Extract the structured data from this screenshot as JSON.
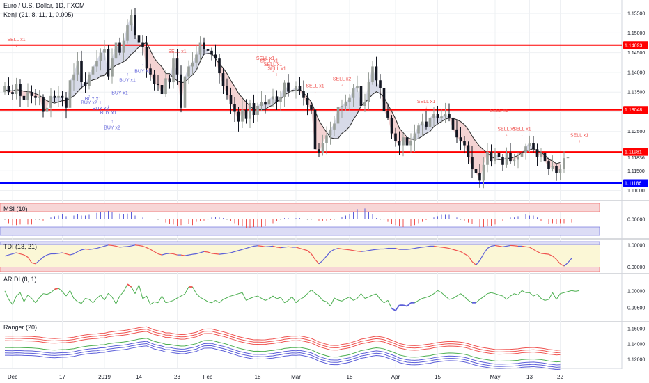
{
  "chart_data": [
    {
      "type": "candlestick",
      "title": "Euro / U.S. Dollar, 1D, FXCM",
      "indicator": "Kenji (21, 8, 11, 1, 0.005)",
      "y_ticks": [
        "1.15500",
        "1.15000",
        "1.14500",
        "1.14000",
        "1.13500",
        "1.13000",
        "1.12500",
        "1.11500",
        "1.11000"
      ],
      "ylim": [
        1.1085,
        1.1575
      ],
      "x_labels": [
        {
          "index": 2,
          "label": "Dec"
        },
        {
          "index": 15,
          "label": "17"
        },
        {
          "index": 26,
          "label": "2019"
        },
        {
          "index": 35,
          "label": "14"
        },
        {
          "index": 45,
          "label": "23"
        },
        {
          "index": 53,
          "label": "Feb"
        },
        {
          "index": 66,
          "label": "18"
        },
        {
          "index": 76,
          "label": "Mar"
        },
        {
          "index": 90,
          "label": "18"
        },
        {
          "index": 102,
          "label": "Apr"
        },
        {
          "index": 113,
          "label": "15"
        },
        {
          "index": 128,
          "label": "May"
        },
        {
          "index": 137,
          "label": "13"
        },
        {
          "index": 145,
          "label": "22"
        }
      ],
      "levels": [
        {
          "value": 1.14693,
          "label": "1.14693",
          "color": "#ff0000"
        },
        {
          "value": 1.13048,
          "label": "1.13048",
          "color": "#ff0000"
        },
        {
          "value": 1.11981,
          "label": "1.11981",
          "color": "#ff0000"
        },
        {
          "value": 1.11186,
          "label": "1.11186",
          "color": "#0000ff"
        }
      ],
      "last_price": {
        "value": 1.11836,
        "label": "1.11836"
      },
      "closes": [
        1.1365,
        1.135,
        1.1345,
        1.137,
        1.134,
        1.133,
        1.135,
        1.134,
        1.1335,
        1.1338,
        1.13,
        1.131,
        1.134,
        1.1335,
        1.134,
        1.1335,
        1.131,
        1.138,
        1.1395,
        1.143,
        1.1375,
        1.1365,
        1.1395,
        1.1415,
        1.143,
        1.145,
        1.146,
        1.139,
        1.1435,
        1.1475,
        1.145,
        1.148,
        1.152,
        1.1545,
        1.1495,
        1.1475,
        1.1465,
        1.141,
        1.1395,
        1.137,
        1.1368,
        1.1345,
        1.1385,
        1.1375,
        1.1435,
        1.1395,
        1.131,
        1.139,
        1.1415,
        1.1425,
        1.1445,
        1.1475,
        1.146,
        1.1455,
        1.1445,
        1.1435,
        1.1398,
        1.1365,
        1.1342,
        1.132,
        1.13,
        1.1275,
        1.1305,
        1.1282,
        1.1322,
        1.1292,
        1.1315,
        1.1325,
        1.1318,
        1.1332,
        1.1339,
        1.1325,
        1.1338,
        1.1374,
        1.1351,
        1.1354,
        1.1365,
        1.1352,
        1.1335,
        1.1317,
        1.1305,
        1.1205,
        1.1195,
        1.122,
        1.124,
        1.1255,
        1.127,
        1.1312,
        1.1315,
        1.1325,
        1.1335,
        1.1359,
        1.1365,
        1.1315,
        1.1325,
        1.1375,
        1.1415,
        1.138,
        1.136,
        1.1302,
        1.1285,
        1.1245,
        1.1225,
        1.1215,
        1.1235,
        1.1215,
        1.1225,
        1.1245,
        1.1265,
        1.1275,
        1.1262,
        1.1285,
        1.1295,
        1.1285,
        1.1288,
        1.1295,
        1.1285,
        1.1255,
        1.1235,
        1.1225,
        1.1215,
        1.1185,
        1.1155,
        1.1145,
        1.1125,
        1.1165,
        1.1198,
        1.1175,
        1.1195,
        1.1185,
        1.1165,
        1.1195,
        1.1175,
        1.1178,
        1.1185,
        1.1195,
        1.1212,
        1.1221,
        1.1205,
        1.1185,
        1.1195,
        1.1175,
        1.1155,
        1.1162,
        1.1145,
        1.1155,
        1.1182,
        1.1185
      ],
      "moving_average": [
        1.1355,
        1.1354,
        1.1353,
        1.1356,
        1.1355,
        1.1352,
        1.1351,
        1.135,
        1.1346,
        1.1342,
        1.1334,
        1.1328,
        1.1324,
        1.1322,
        1.1325,
        1.1328,
        1.1329,
        1.1334,
        1.134,
        1.1351,
        1.1361,
        1.1369,
        1.1376,
        1.1381,
        1.1383,
        1.1391,
        1.1392,
        1.1405,
        1.1411,
        1.1418,
        1.1422,
        1.1427,
        1.1434,
        1.1446,
        1.1454,
        1.1465,
        1.1471,
        1.1476,
        1.1456,
        1.1436,
        1.1424,
        1.1414,
        1.1397,
        1.1397,
        1.1386,
        1.1379,
        1.1374,
        1.1375,
        1.1385,
        1.1394,
        1.1405,
        1.1428,
        1.1446,
        1.1448,
        1.1448,
        1.1435,
        1.1422,
        1.1411,
        1.1397,
        1.1379,
        1.1364,
        1.1347,
        1.1335,
        1.1324,
        1.1315,
        1.1306,
        1.1307,
        1.1305,
        1.1306,
        1.1313,
        1.1317,
        1.1326,
        1.1331,
        1.1343,
        1.1348,
        1.1355,
        1.1353,
        1.1357,
        1.1348,
        1.1337,
        1.1325,
        1.1302,
        1.1278,
        1.1262,
        1.1248,
        1.1234,
        1.1232,
        1.1232,
        1.1245,
        1.1252,
        1.1262,
        1.128,
        1.1295,
        1.1315,
        1.1323,
        1.1333,
        1.1344,
        1.1351,
        1.1346,
        1.1337,
        1.1318,
        1.1301,
        1.1282,
        1.1258,
        1.1247,
        1.1235,
        1.1231,
        1.1229,
        1.1232,
        1.1238,
        1.1245,
        1.125,
        1.1262,
        1.1269,
        1.1275,
        1.1281,
        1.1284,
        1.1283,
        1.128,
        1.1275,
        1.1267,
        1.1255,
        1.1238,
        1.1224,
        1.1212,
        1.1203,
        1.1195,
        1.1187,
        1.118,
        1.1178,
        1.1179,
        1.1181,
        1.1182,
        1.1185,
        1.1189,
        1.1197,
        1.1201,
        1.1203,
        1.1206,
        1.1201,
        1.1197,
        1.119,
        1.1179,
        1.1175,
        1.1168,
        1.1171
      ],
      "signals": [
        {
          "index": 3,
          "text": "SELL x1",
          "color": "#ef5350",
          "pos": "above",
          "level": 1.1465
        },
        {
          "index": 22,
          "text": "BUY x2",
          "color": "#5b5ed8",
          "pos": "below",
          "level": 1.1335
        },
        {
          "index": 23,
          "text": "BUY x1",
          "color": "#5b5ed8",
          "pos": "below",
          "level": 1.1345
        },
        {
          "index": 25,
          "text": "BUY x2",
          "color": "#5b5ed8",
          "pos": "below",
          "level": 1.132
        },
        {
          "index": 27,
          "text": "BUY x1",
          "color": "#5b5ed8",
          "pos": "below",
          "level": 1.131
        },
        {
          "index": 28,
          "text": "BUY x2",
          "color": "#5b5ed8",
          "pos": "below",
          "level": 1.1272
        },
        {
          "index": 30,
          "text": "BUY x1",
          "color": "#5b5ed8",
          "pos": "below",
          "level": 1.136
        },
        {
          "index": 32,
          "text": "BUY x1",
          "color": "#5b5ed8",
          "pos": "below",
          "level": 1.1392
        },
        {
          "index": 36,
          "text": "BUY x1",
          "color": "#5b5ed8",
          "pos": "below",
          "level": 1.1415
        },
        {
          "index": 45,
          "text": "SELL x1",
          "color": "#ef5350",
          "pos": "above",
          "level": 1.1435
        },
        {
          "index": 68,
          "text": "SELL x1",
          "color": "#ef5350",
          "pos": "above",
          "level": 1.1418
        },
        {
          "index": 69,
          "text": "SELL x1",
          "color": "#ef5350",
          "pos": "above",
          "level": 1.1411
        },
        {
          "index": 70,
          "text": "SELL x1",
          "color": "#ef5350",
          "pos": "above",
          "level": 1.1402
        },
        {
          "index": 71,
          "text": "SELL x1",
          "color": "#ef5350",
          "pos": "above",
          "level": 1.1392
        },
        {
          "index": 81,
          "text": "SELL x1",
          "color": "#ef5350",
          "pos": "above",
          "level": 1.1348
        },
        {
          "index": 88,
          "text": "SELL x2",
          "color": "#ef5350",
          "pos": "above",
          "level": 1.1365
        },
        {
          "index": 110,
          "text": "SELL x1",
          "color": "#ef5350",
          "pos": "above",
          "level": 1.1308
        },
        {
          "index": 129,
          "text": "SELL x1",
          "color": "#ef5350",
          "pos": "above",
          "level": 1.1285
        },
        {
          "index": 131,
          "text": "SELL x1",
          "color": "#ef5350",
          "pos": "above",
          "level": 1.1238
        },
        {
          "index": 135,
          "text": "SELL x1",
          "color": "#ef5350",
          "pos": "above",
          "level": 1.1238
        },
        {
          "index": 150,
          "text": "SELL x1",
          "color": "#ef5350",
          "pos": "above",
          "level": 1.1222
        }
      ],
      "colors": {
        "up": "#9aa09a",
        "down": "#131722",
        "ma": "#333333",
        "cloud_up": "#f4d3d3",
        "cloud_down": "#d7dae8"
      }
    },
    {
      "type": "histogram",
      "title": "MSI (10)",
      "y_ticks": [
        "0.00000"
      ],
      "ylim": [
        -2.5,
        2.5
      ],
      "values": [
        0,
        -0.6,
        -0.9,
        -0.9,
        -0.8,
        -0.8,
        -0.8,
        -0.8,
        0,
        0,
        -0.2,
        0.2,
        0.3,
        0.5,
        0.6,
        0.8,
        0.5,
        0.6,
        0.6,
        0.8,
        0.6,
        0.6,
        0.7,
        0.8,
        1,
        1.2,
        1.2,
        1.3,
        1.1,
        1,
        0.9,
        0.8,
        0.9,
        1.2,
        0.6,
        0.3,
        0.3,
        0.1,
        0.1,
        0.1,
        0,
        -0.3,
        -0.5,
        -0.7,
        -0.8,
        -1,
        -0.9,
        -0.9,
        -0.7,
        -0.9,
        -0.4,
        -0.3,
        -0.2,
        0,
        0.3,
        0.4,
        0.3,
        0.2,
        0,
        -0.3,
        -0.6,
        -0.9,
        -1.1,
        -1.3,
        -1.3,
        -1.2,
        -1.2,
        -1.2,
        -1,
        -0.8,
        -0.6,
        -0.3,
        0,
        0.2,
        0.2,
        0.3,
        0.2,
        0.2,
        0.1,
        0,
        0,
        -0.2,
        -0.2,
        -0.2,
        -0.2,
        -0.1,
        0,
        0.1,
        0.4,
        0.6,
        0.8,
        1.2,
        1.6,
        1.7,
        1.7,
        1.2,
        0.8,
        0.2,
        0,
        0,
        -0.4,
        -0.7,
        -0.9,
        -1.1,
        -1.2,
        -1.2,
        -1.1,
        -0.9,
        -0.6,
        -0.4,
        -0.1,
        0.1,
        0.3,
        0.5,
        0.7,
        0.7,
        0.7,
        0.5,
        0.3,
        0,
        -0.2,
        -0.5,
        -0.7,
        -1,
        -1.2,
        -1.2,
        -1.1,
        -1.0,
        -0.8,
        -0.5,
        -0.3,
        0.1,
        0.3,
        0.3,
        0.5,
        0.6,
        0.8,
        0.6,
        0.6,
        0.3,
        -0.3,
        -0.6,
        -0.7,
        -0.6,
        -0.7,
        -0.6,
        -0.6,
        -0.6,
        -0.5
      ],
      "colors": {
        "positive": "#5b5ed8",
        "negative": "#ef5350",
        "band_top": "#f7d6d6",
        "band_bottom": "#dcdcf5"
      }
    },
    {
      "type": "line",
      "title": "TDI (13, 21)",
      "y_ticks": [
        "1.00000",
        "0.00000"
      ],
      "ylim": [
        -0.2,
        1.15
      ],
      "values": [
        0.5,
        0.55,
        0.6,
        0.65,
        0.6,
        0.55,
        0.45,
        0.2,
        0.15,
        0.3,
        0.45,
        0.55,
        0.6,
        0.6,
        0.62,
        0.65,
        0.6,
        0.55,
        0.6,
        0.7,
        0.78,
        0.82,
        0.8,
        0.82,
        0.85,
        0.9,
        0.95,
        1.0,
        0.98,
        0.95,
        0.9,
        0.92,
        0.93,
        0.96,
        1.0,
        0.98,
        0.95,
        0.88,
        0.8,
        0.7,
        0.6,
        0.55,
        0.6,
        0.62,
        0.6,
        0.55,
        0.55,
        0.52,
        0.55,
        0.58,
        0.6,
        0.65,
        0.7,
        0.68,
        0.62,
        0.6,
        0.58,
        0.6,
        0.62,
        0.65,
        0.7,
        0.75,
        0.8,
        0.85,
        0.9,
        0.95,
        0.97,
        0.95,
        0.92,
        0.93,
        0.95,
        0.9,
        0.88,
        0.9,
        0.92,
        0.9,
        0.9,
        0.85,
        0.8,
        0.75,
        0.6,
        0.35,
        0.15,
        0.3,
        0.5,
        0.7,
        0.8,
        0.85,
        0.82,
        0.8,
        0.78,
        0.75,
        0.72,
        0.7,
        0.72,
        0.75,
        0.78,
        0.8,
        0.82,
        0.82,
        0.85,
        0.85,
        0.85,
        0.8,
        0.8,
        0.8,
        0.82,
        0.85,
        0.88,
        0.9,
        0.92,
        0.95,
        0.95,
        0.92,
        0.9,
        0.88,
        0.85,
        0.8,
        0.75,
        0.7,
        0.6,
        0.5,
        0.25,
        0.1,
        0.3,
        0.6,
        0.85,
        0.95,
        0.98,
        0.95,
        0.92,
        0.95,
        0.98,
        0.97,
        0.95,
        0.95,
        0.92,
        0.9,
        0.8,
        0.7,
        0.62,
        0.6,
        0.58,
        0.5,
        0.35,
        0.15,
        0.05,
        0.2,
        0.4
      ],
      "colors": {
        "up": "#5b5ed8",
        "down": "#ef5350",
        "band_top": "#dcdcf5",
        "band_mid": "#fbf7d6",
        "band_bottom": "#f7d6d6"
      }
    },
    {
      "type": "line",
      "title": "AR DI (8, 1)",
      "y_ticks": [
        "1.00000",
        "0.99500"
      ],
      "ylim": [
        0.9915,
        1.0045
      ],
      "values": [
        1.0,
        0.9975,
        0.996,
        0.9985,
        0.9995,
        0.9968,
        0.9988,
        0.9978,
        0.9965,
        0.998,
        0.9992,
        0.999,
        0.9995,
        1.0005,
        1.0008,
        0.9998,
        0.9985,
        1.0001,
        0.9978,
        0.9968,
        0.9963,
        0.9978,
        0.9975,
        0.9965,
        0.9978,
        0.9988,
        0.9973,
        0.9993,
        0.9982,
        0.9962,
        0.9985,
        0.9998,
        1.002,
        1.0012,
        0.9992,
        1.0018,
        0.9977,
        0.9985,
        0.996,
        0.9968,
        0.9965,
        0.9985,
        0.9965,
        0.9968,
        0.9972,
        0.9979,
        0.9985,
        0.9991,
        1.0012,
        1.0012,
        0.9992,
        0.9981,
        0.9975,
        0.9968,
        0.9965,
        0.9972,
        0.9965,
        0.9975,
        0.998,
        0.9985,
        0.9988,
        0.9992,
        0.9995,
        0.9972,
        0.9978,
        0.9982,
        0.9985,
        0.9978,
        0.9972,
        0.9977,
        0.9985,
        0.9977,
        0.9981,
        0.9965,
        0.9972,
        0.9983,
        0.9965,
        0.9975,
        0.9981,
        0.9992,
        1.0003,
        0.9993,
        0.9985,
        0.9972,
        0.9968,
        0.9955,
        0.9979,
        0.9973,
        0.997,
        0.9977,
        0.9982,
        0.9972,
        0.9978,
        0.9992,
        0.9978,
        0.9982,
        0.9988,
        0.9991,
        0.9975,
        0.9965,
        0.9972,
        0.9948,
        0.9942,
        0.9958,
        0.9958,
        0.9955,
        0.9965,
        0.9965,
        0.9972,
        0.9978,
        0.9981,
        0.9985,
        0.9992,
        1.0001,
        0.9995,
        0.9985,
        0.9975,
        0.9978,
        0.9985,
        0.9992,
        0.9983,
        0.9972,
        0.9965,
        0.9965,
        0.9975,
        0.9983,
        0.9992,
        0.9995,
        0.9992,
        0.9988,
        0.9985,
        0.9975,
        0.9985,
        0.9992,
        0.9988,
        1.0001,
        0.9995,
        0.9995,
        0.9985,
        0.999,
        0.9978,
        0.9972,
        0.9975,
        0.9995,
        0.9975,
        0.9992,
        0.9995,
        0.9998,
        1.0001,
        0.9999,
        1.0001
      ],
      "colors": {
        "neutral": "#4caf50",
        "strong_up": "#ef5350",
        "strong_down": "#5b5ed8"
      }
    },
    {
      "type": "line",
      "title": "Ranger (20)",
      "y_ticks": [
        "1.16000",
        "1.14000",
        "1.12000"
      ],
      "ylim": [
        1.111,
        1.1665
      ],
      "series_offsets": [
        0.015,
        0.012,
        0.009,
        0.0,
        -0.004,
        -0.007,
        -0.01
      ],
      "colors": [
        "#ef5350",
        "#ef5350",
        "#ef5350",
        "#4caf50",
        "#5b5ed8",
        "#5b5ed8",
        "#5b5ed8"
      ]
    }
  ]
}
